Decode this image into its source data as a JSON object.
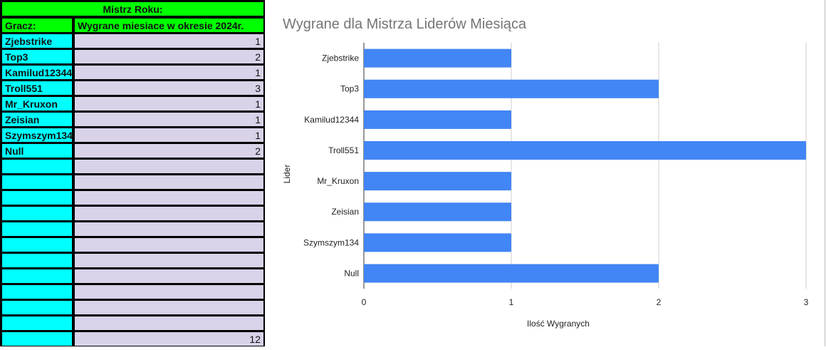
{
  "table": {
    "title": "Mistrz Roku:",
    "col_player": "Gracz:",
    "col_wins": "Wygrane miesiace w okresie 2024r.",
    "rows": [
      {
        "player": "Zjebstrike",
        "wins": "1"
      },
      {
        "player": "Top3",
        "wins": "2"
      },
      {
        "player": "Kamilud12344",
        "wins": "1"
      },
      {
        "player": "Troll551",
        "wins": "3"
      },
      {
        "player": "Mr_Kruxon",
        "wins": "1"
      },
      {
        "player": "Zeisian",
        "wins": "1"
      },
      {
        "player": "Szymszym134",
        "wins": "1"
      },
      {
        "player": "Null",
        "wins": "2"
      }
    ],
    "empty_rows": 11,
    "total": "12"
  },
  "chart_data": {
    "type": "bar",
    "orientation": "horizontal",
    "title": "Wygrane dla Mistrza Liderów Miesiąca",
    "xlabel": "Ilość Wygranych",
    "ylabel": "Lider",
    "categories": [
      "Zjebstrike",
      "Top3",
      "Kamilud12344",
      "Troll551",
      "Mr_Kruxon",
      "Zeisian",
      "Szymszym134",
      "Null"
    ],
    "values": [
      1,
      2,
      1,
      3,
      1,
      1,
      1,
      2
    ],
    "xlim": [
      0,
      3
    ],
    "xticks": [
      "0",
      "1",
      "2",
      "3"
    ],
    "grid": true,
    "color": "#4285f4"
  }
}
